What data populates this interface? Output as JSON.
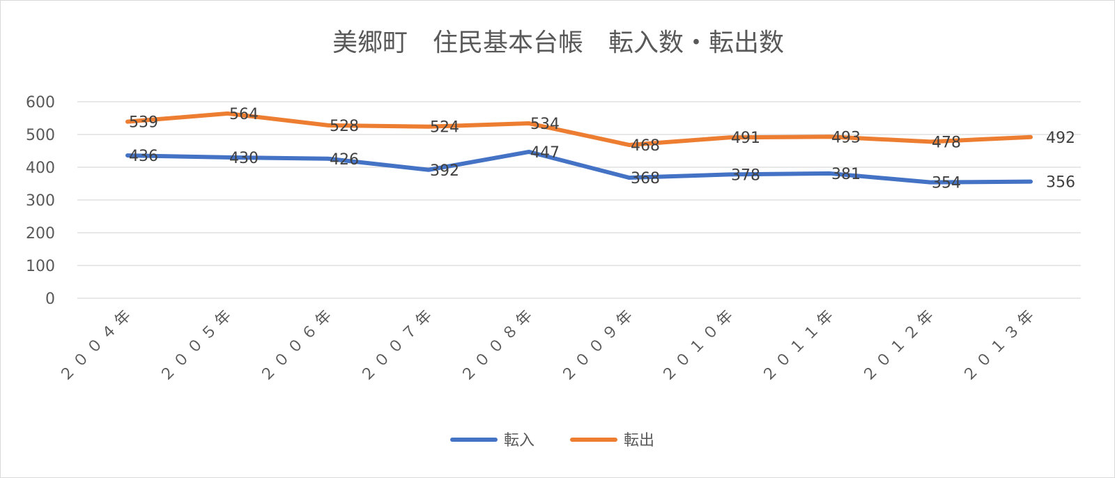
{
  "chart_data": {
    "type": "line",
    "title": "美郷町　住民基本台帳　転入数・転出数",
    "categories": [
      "２００４年",
      "２００５年",
      "２００６年",
      "２００７年",
      "２００８年",
      "２００９年",
      "２０１０年",
      "２０１１年",
      "２０１２年",
      "２０１３年"
    ],
    "series": [
      {
        "name": "転入",
        "color": "#4472c4",
        "values": [
          436,
          430,
          426,
          392,
          447,
          368,
          378,
          381,
          354,
          356
        ]
      },
      {
        "name": "転出",
        "color": "#ed7d31",
        "values": [
          539,
          564,
          528,
          524,
          534,
          468,
          491,
          493,
          478,
          492
        ]
      }
    ],
    "ylim": [
      0,
      600
    ],
    "yticks": [
      0,
      100,
      200,
      300,
      400,
      500,
      600
    ],
    "grid": true,
    "data_labels": true,
    "legend_position": "bottom"
  }
}
